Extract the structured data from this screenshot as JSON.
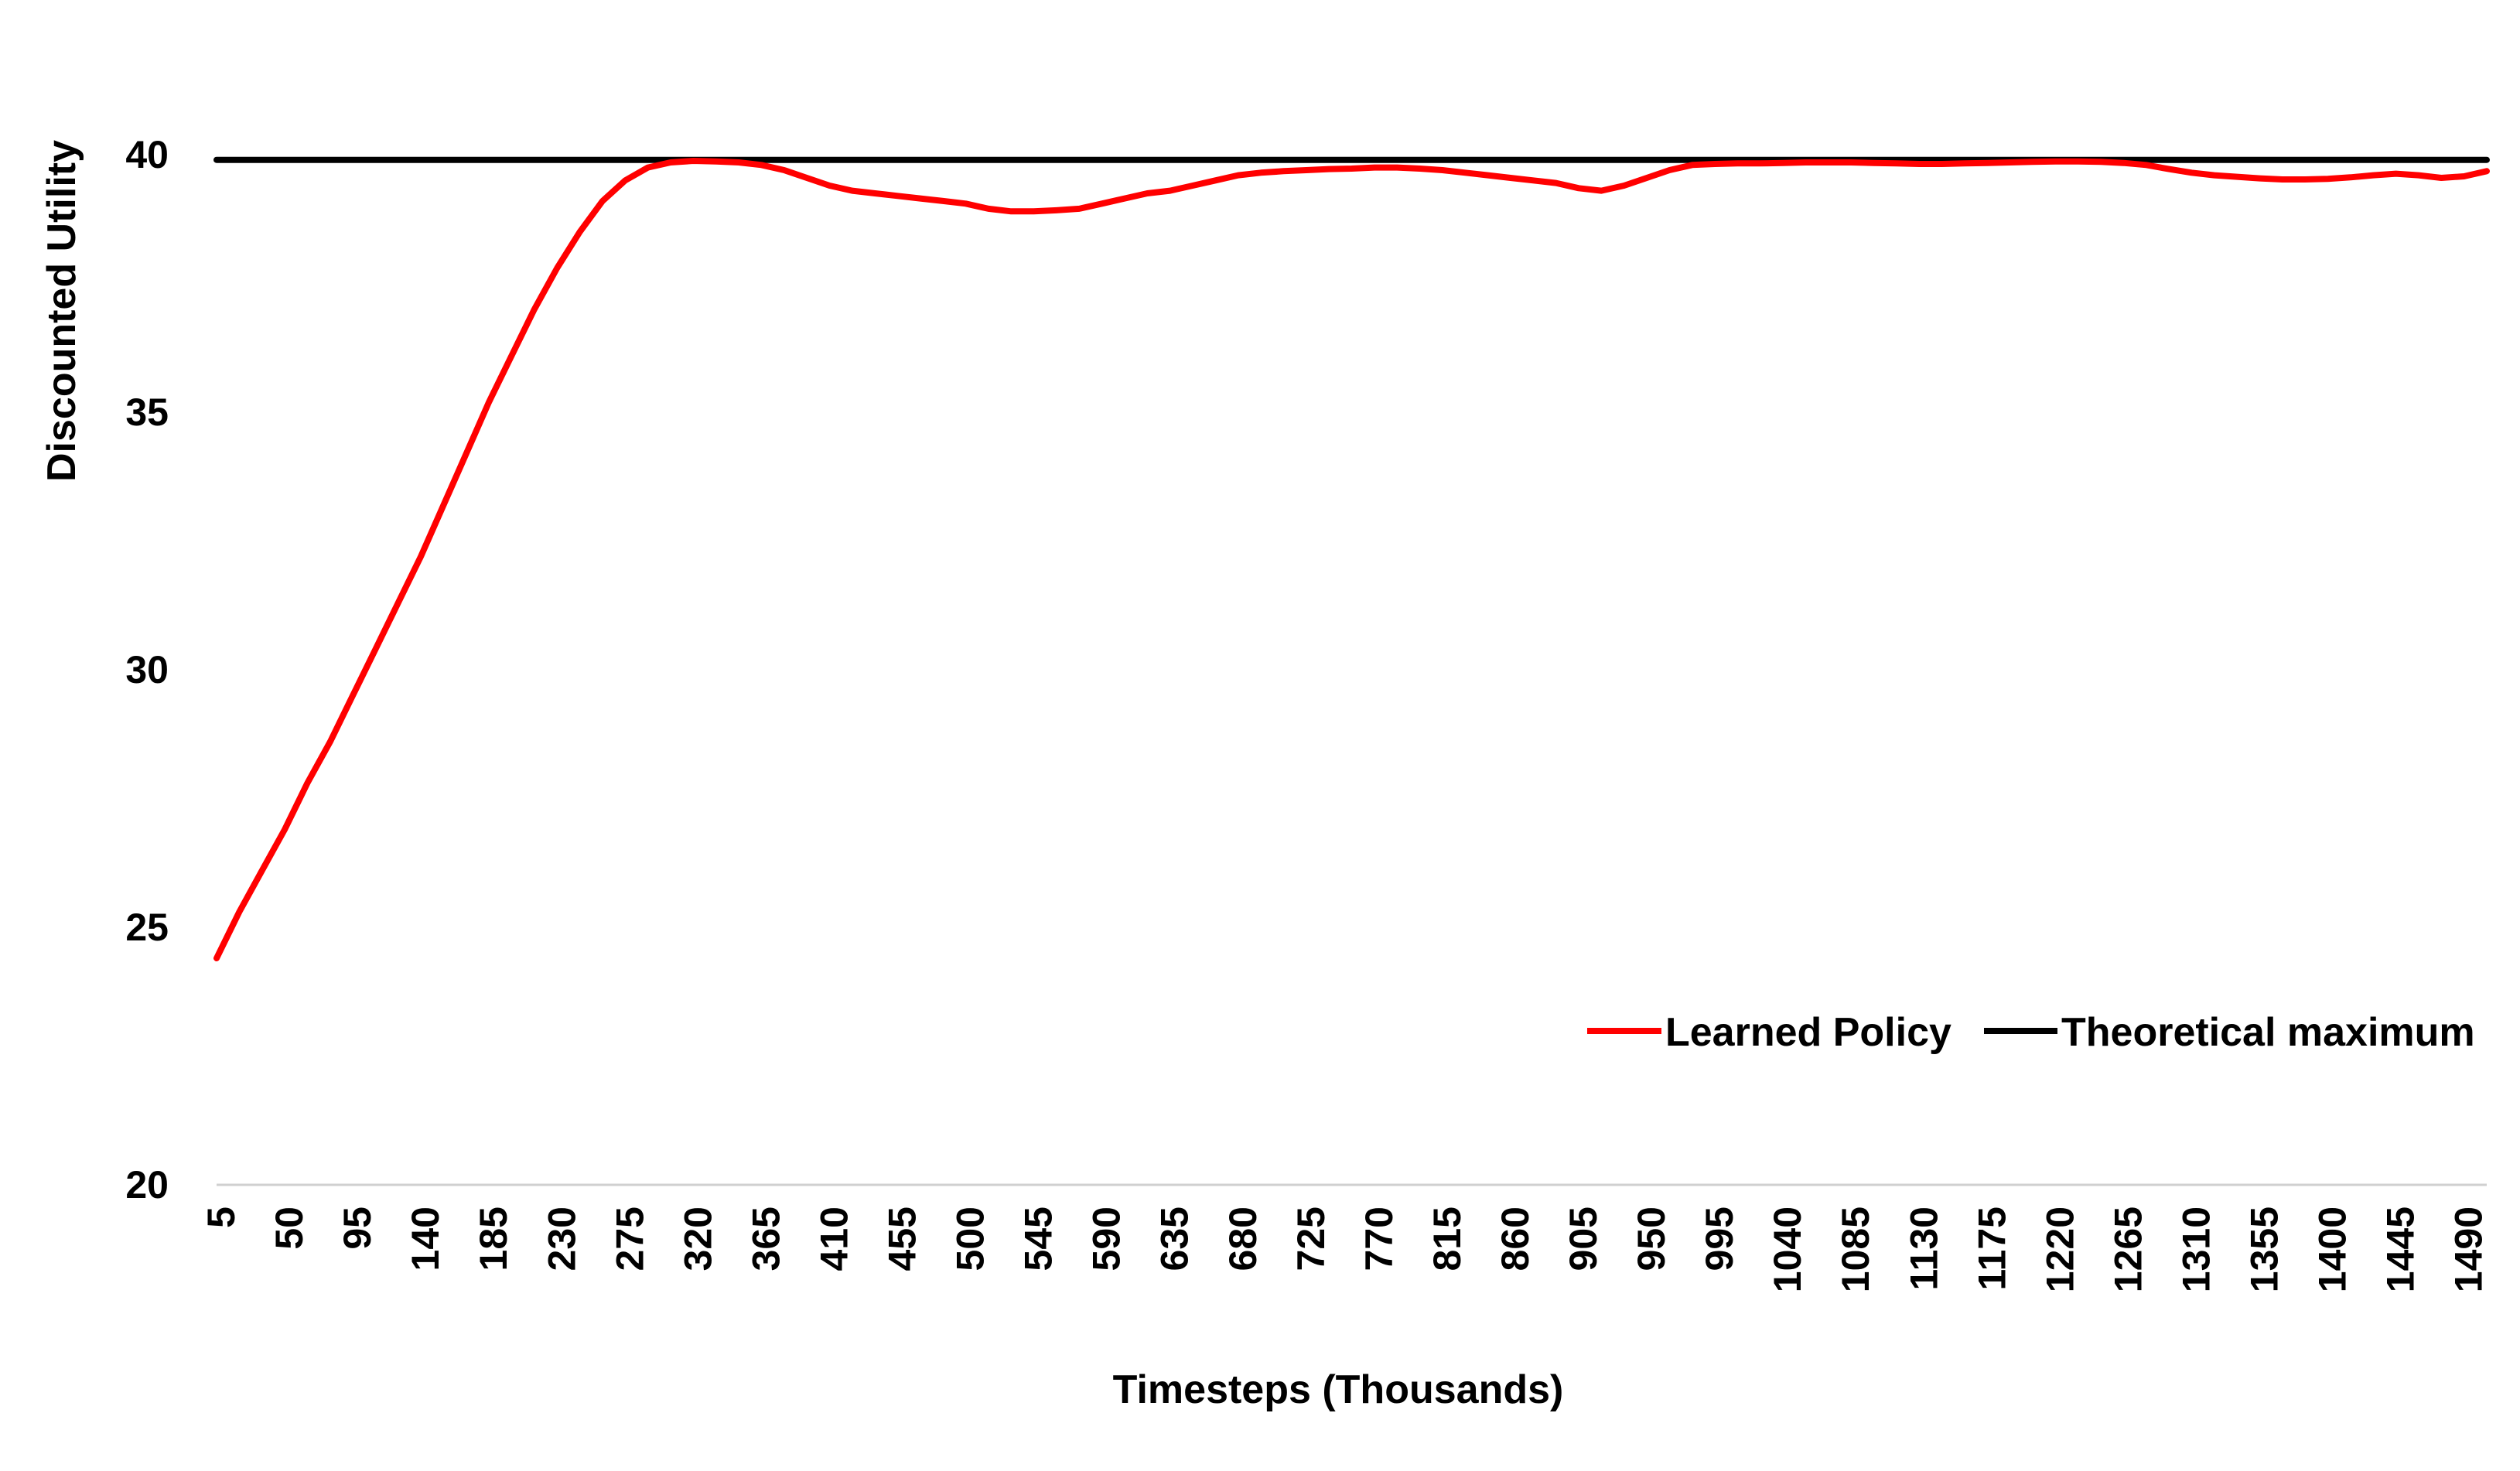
{
  "chart_data": {
    "type": "line",
    "title": "",
    "xlabel": "Timesteps (Thousands)",
    "ylabel": "Discounted Utility",
    "ylim": [
      20,
      40
    ],
    "yticks": [
      20,
      25,
      30,
      35,
      40
    ],
    "x_tick_labels": [
      "5",
      "50",
      "95",
      "140",
      "185",
      "230",
      "275",
      "320",
      "365",
      "410",
      "455",
      "500",
      "545",
      "590",
      "635",
      "680",
      "725",
      "770",
      "815",
      "860",
      "905",
      "950",
      "995",
      "1040",
      "1085",
      "1130",
      "1175",
      "1220",
      "1265",
      "1310",
      "1355",
      "1400",
      "1445",
      "1490"
    ],
    "grid": false,
    "legend_position": "lower-right",
    "series": [
      {
        "name": "Learned Policy",
        "color": "#ff0000",
        "x": [
          5,
          20,
          35,
          50,
          65,
          80,
          95,
          110,
          125,
          140,
          155,
          170,
          185,
          200,
          215,
          230,
          245,
          260,
          275,
          290,
          305,
          320,
          335,
          350,
          365,
          380,
          395,
          410,
          425,
          440,
          455,
          470,
          485,
          500,
          515,
          530,
          545,
          560,
          575,
          590,
          605,
          620,
          635,
          650,
          665,
          680,
          695,
          710,
          725,
          740,
          755,
          770,
          785,
          800,
          815,
          830,
          845,
          860,
          875,
          890,
          905,
          920,
          935,
          950,
          965,
          980,
          995,
          1010,
          1025,
          1040,
          1055,
          1070,
          1085,
          1100,
          1115,
          1130,
          1145,
          1160,
          1175,
          1190,
          1205,
          1220,
          1235,
          1250,
          1265,
          1280,
          1295,
          1310,
          1325,
          1340,
          1355,
          1370,
          1385,
          1400,
          1415,
          1430,
          1445,
          1460,
          1475,
          1490,
          1505
        ],
        "values": [
          24.4,
          25.3,
          26.1,
          26.9,
          27.8,
          28.6,
          29.5,
          30.4,
          31.3,
          32.2,
          33.2,
          34.2,
          35.2,
          36.1,
          37.0,
          37.8,
          38.5,
          39.1,
          39.5,
          39.75,
          39.85,
          39.88,
          39.87,
          39.85,
          39.8,
          39.7,
          39.55,
          39.4,
          39.3,
          39.25,
          39.2,
          39.15,
          39.1,
          39.05,
          38.95,
          38.9,
          38.9,
          38.92,
          38.95,
          39.05,
          39.15,
          39.25,
          39.3,
          39.4,
          39.5,
          39.6,
          39.65,
          39.68,
          39.7,
          39.72,
          39.73,
          39.75,
          39.75,
          39.73,
          39.7,
          39.65,
          39.6,
          39.55,
          39.5,
          39.45,
          39.35,
          39.3,
          39.4,
          39.55,
          39.7,
          39.8,
          39.82,
          39.83,
          39.83,
          39.84,
          39.85,
          39.85,
          39.85,
          39.84,
          39.83,
          39.82,
          39.82,
          39.83,
          39.84,
          39.85,
          39.86,
          39.87,
          39.87,
          39.86,
          39.84,
          39.8,
          39.72,
          39.65,
          39.6,
          39.57,
          39.54,
          39.52,
          39.52,
          39.53,
          39.56,
          39.6,
          39.63,
          39.6,
          39.55,
          39.58,
          39.68
        ]
      },
      {
        "name": "Theoretical maximum",
        "color": "#000000",
        "x": [
          5,
          1505
        ],
        "values": [
          39.9,
          39.9
        ]
      }
    ]
  }
}
